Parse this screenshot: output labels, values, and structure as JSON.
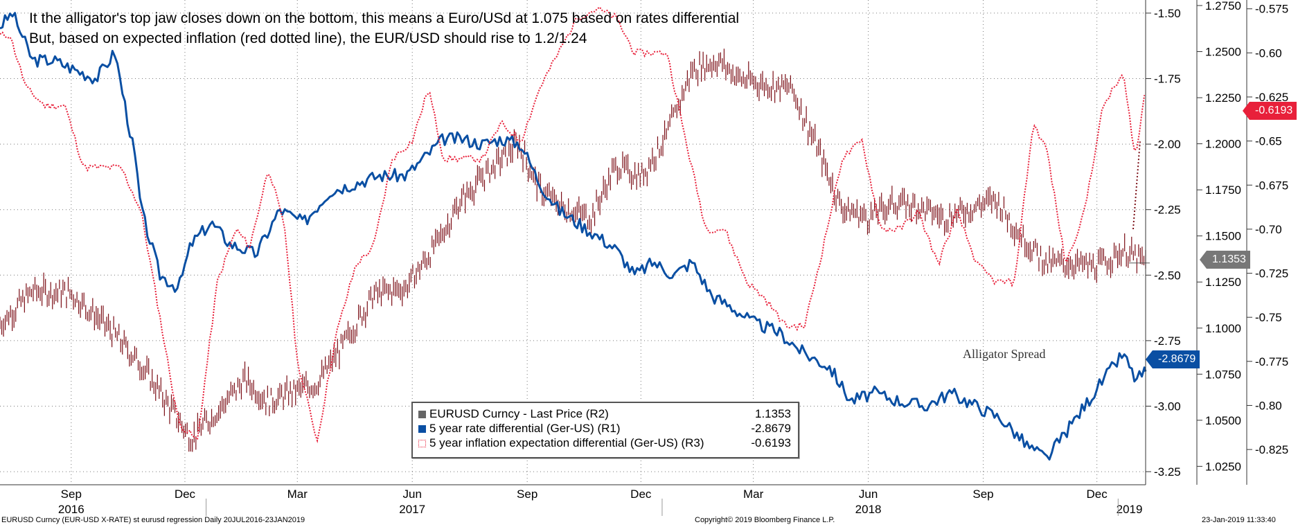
{
  "annotation_line1": "It the alligator's top jaw closes down on the bottom, this means a Euro/USd at 1.075 based on rates differential",
  "annotation_line2": "But, based on expected inflation (red dotted line), the EUR/USD should rise to 1.2/1.24",
  "alligator_label": "Alligator Spread",
  "footer": {
    "left": "EURUSD Curncy (EUR-USD X-RATE) st eurusd regression  Daily 20JUL2016-23JAN2019",
    "center": "Copyright© 2019 Bloomberg Finance L.P.",
    "right": "23-Jan-2019 11:33:40"
  },
  "colors": {
    "eurusd": "#7a0c14",
    "rate": "#0a4fa3",
    "inflation": "#e8203a",
    "grid": "#777777"
  },
  "chart_data": {
    "type": "line",
    "date_range": [
      "2016-07-20",
      "2019-01-23"
    ],
    "x_month_labels": [
      "Sep",
      "Dec",
      "Mar",
      "Jun",
      "Sep",
      "Dec",
      "Mar",
      "Jun",
      "Sep",
      "Dec"
    ],
    "x_year_labels": [
      "2016",
      "2017",
      "2018",
      "2019"
    ],
    "axes": {
      "R1": {
        "ticks": [
          "-1.50",
          "-1.75",
          "-2.00",
          "-2.25",
          "-2.50",
          "-2.75",
          "-3.00",
          "-3.25"
        ],
        "range": [
          -3.3,
          -1.45
        ]
      },
      "R2": {
        "ticks": [
          "1.2750",
          "1.2500",
          "1.2250",
          "1.2000",
          "1.1750",
          "1.1500",
          "1.1250",
          "1.1000",
          "1.0750",
          "1.0500",
          "1.0250"
        ],
        "range": [
          1.015,
          1.278
        ]
      },
      "R3": {
        "ticks": [
          "-0.575",
          "-0.60",
          "-0.625",
          "-0.65",
          "-0.675",
          "-0.70",
          "-0.725",
          "-0.75",
          "-0.775",
          "-0.80",
          "-0.825"
        ],
        "range": [
          -0.845,
          -0.57
        ]
      }
    },
    "series": [
      {
        "name": "EURUSD Curncy - Last Price (R2)",
        "axis": "R2",
        "style": "ohlc",
        "last_value": "1.1353",
        "x": [
          "2016-07-20",
          "2016-08-15",
          "2016-09-15",
          "2016-10-15",
          "2016-11-10",
          "2016-12-05",
          "2016-12-20",
          "2017-01-10",
          "2017-02-01",
          "2017-02-20",
          "2017-03-10",
          "2017-03-31",
          "2017-04-20",
          "2017-05-15",
          "2017-06-10",
          "2017-07-01",
          "2017-07-25",
          "2017-08-15",
          "2017-09-08",
          "2017-09-25",
          "2017-10-15",
          "2017-11-05",
          "2017-11-25",
          "2017-12-15",
          "2018-01-05",
          "2018-01-25",
          "2018-02-15",
          "2018-03-05",
          "2018-03-25",
          "2018-04-15",
          "2018-05-05",
          "2018-05-25",
          "2018-06-15",
          "2018-07-05",
          "2018-07-25",
          "2018-08-15",
          "2018-09-05",
          "2018-09-25",
          "2018-10-15",
          "2018-11-05",
          "2018-11-25",
          "2018-12-15",
          "2019-01-05",
          "2019-01-23"
        ],
        "values": [
          1.102,
          1.12,
          1.119,
          1.1,
          1.08,
          1.055,
          1.04,
          1.055,
          1.072,
          1.06,
          1.065,
          1.07,
          1.09,
          1.118,
          1.122,
          1.142,
          1.17,
          1.185,
          1.2,
          1.175,
          1.165,
          1.16,
          1.188,
          1.182,
          1.205,
          1.24,
          1.245,
          1.235,
          1.232,
          1.23,
          1.198,
          1.165,
          1.16,
          1.168,
          1.166,
          1.16,
          1.165,
          1.17,
          1.15,
          1.135,
          1.135,
          1.133,
          1.142,
          1.1353
        ]
      },
      {
        "name": "5 year rate differential (Ger-US) (R1)",
        "axis": "R1",
        "style": "solid",
        "last_value": "-2.8679",
        "x": [
          "2016-07-20",
          "2016-07-30",
          "2016-08-15",
          "2016-09-01",
          "2016-09-20",
          "2016-10-05",
          "2016-10-20",
          "2016-11-05",
          "2016-11-10",
          "2016-11-25",
          "2016-12-10",
          "2016-12-20",
          "2017-01-05",
          "2017-01-20",
          "2017-02-10",
          "2017-03-01",
          "2017-03-20",
          "2017-04-10",
          "2017-04-30",
          "2017-05-20",
          "2017-06-10",
          "2017-06-25",
          "2017-07-10",
          "2017-07-25",
          "2017-08-10",
          "2017-08-25",
          "2017-09-10",
          "2017-09-25",
          "2017-10-10",
          "2017-10-25",
          "2017-11-10",
          "2017-11-25",
          "2017-12-10",
          "2017-12-25",
          "2018-01-10",
          "2018-01-25",
          "2018-02-10",
          "2018-02-25",
          "2018-03-15",
          "2018-04-05",
          "2018-04-25",
          "2018-05-15",
          "2018-06-01",
          "2018-06-20",
          "2018-07-10",
          "2018-07-30",
          "2018-08-20",
          "2018-09-10",
          "2018-09-30",
          "2018-10-20",
          "2018-11-05",
          "2018-11-20",
          "2018-12-05",
          "2018-12-20",
          "2019-01-05",
          "2019-01-15",
          "2019-01-23"
        ],
        "values": [
          -1.55,
          -1.5,
          -1.68,
          -1.68,
          -1.72,
          -1.75,
          -1.65,
          -2.05,
          -2.25,
          -2.5,
          -2.55,
          -2.38,
          -2.3,
          -2.38,
          -2.42,
          -2.25,
          -2.3,
          -2.18,
          -2.15,
          -2.12,
          -2.12,
          -2.05,
          -1.98,
          -1.98,
          -2.0,
          -1.98,
          -2.0,
          -2.15,
          -2.25,
          -2.3,
          -2.35,
          -2.4,
          -2.5,
          -2.45,
          -2.5,
          -2.45,
          -2.58,
          -2.62,
          -2.68,
          -2.72,
          -2.8,
          -2.85,
          -2.98,
          -2.95,
          -2.98,
          -3.0,
          -2.95,
          -3.0,
          -3.05,
          -3.15,
          -3.2,
          -3.1,
          -3.0,
          -2.9,
          -2.8,
          -2.9,
          -2.8679
        ]
      },
      {
        "name": "5 year inflation expectation differential (Ger-US) (R3)",
        "axis": "R3",
        "style": "dotted",
        "last_value": "-0.6193",
        "x": [
          "2016-07-20",
          "2016-07-28",
          "2016-08-10",
          "2016-08-25",
          "2016-09-10",
          "2016-09-25",
          "2016-10-10",
          "2016-10-25",
          "2016-11-10",
          "2016-11-25",
          "2016-12-10",
          "2016-12-25",
          "2017-01-10",
          "2017-01-25",
          "2017-02-05",
          "2017-02-20",
          "2017-03-05",
          "2017-03-15",
          "2017-03-31",
          "2017-04-15",
          "2017-05-01",
          "2017-05-15",
          "2017-05-30",
          "2017-06-15",
          "2017-06-28",
          "2017-07-10",
          "2017-07-25",
          "2017-08-10",
          "2017-08-25",
          "2017-09-10",
          "2017-09-25",
          "2017-10-10",
          "2017-10-25",
          "2017-11-10",
          "2017-11-25",
          "2017-12-10",
          "2017-12-25",
          "2018-01-05",
          "2018-01-20",
          "2018-02-05",
          "2018-02-20",
          "2018-03-10",
          "2018-03-25",
          "2018-04-10",
          "2018-04-25",
          "2018-05-10",
          "2018-05-25",
          "2018-06-10",
          "2018-06-25",
          "2018-07-10",
          "2018-07-25",
          "2018-08-10",
          "2018-08-25",
          "2018-09-10",
          "2018-09-25",
          "2018-10-10",
          "2018-10-25",
          "2018-11-05",
          "2018-11-20",
          "2018-12-05",
          "2018-12-20",
          "2019-01-05",
          "2019-01-15",
          "2019-01-23"
        ],
        "values": [
          -0.59,
          -0.59,
          -0.62,
          -0.63,
          -0.63,
          -0.665,
          -0.665,
          -0.665,
          -0.69,
          -0.75,
          -0.81,
          -0.82,
          -0.73,
          -0.7,
          -0.71,
          -0.665,
          -0.7,
          -0.775,
          -0.82,
          -0.76,
          -0.72,
          -0.71,
          -0.66,
          -0.65,
          -0.62,
          -0.66,
          -0.66,
          -0.66,
          -0.64,
          -0.65,
          -0.62,
          -0.6,
          -0.58,
          -0.575,
          -0.58,
          -0.6,
          -0.6,
          -0.6,
          -0.65,
          -0.7,
          -0.7,
          -0.73,
          -0.74,
          -0.755,
          -0.755,
          -0.71,
          -0.66,
          -0.65,
          -0.7,
          -0.7,
          -0.69,
          -0.72,
          -0.69,
          -0.72,
          -0.73,
          -0.73,
          -0.64,
          -0.655,
          -0.72,
          -0.69,
          -0.63,
          -0.612,
          -0.66,
          -0.6193
        ]
      }
    ]
  }
}
